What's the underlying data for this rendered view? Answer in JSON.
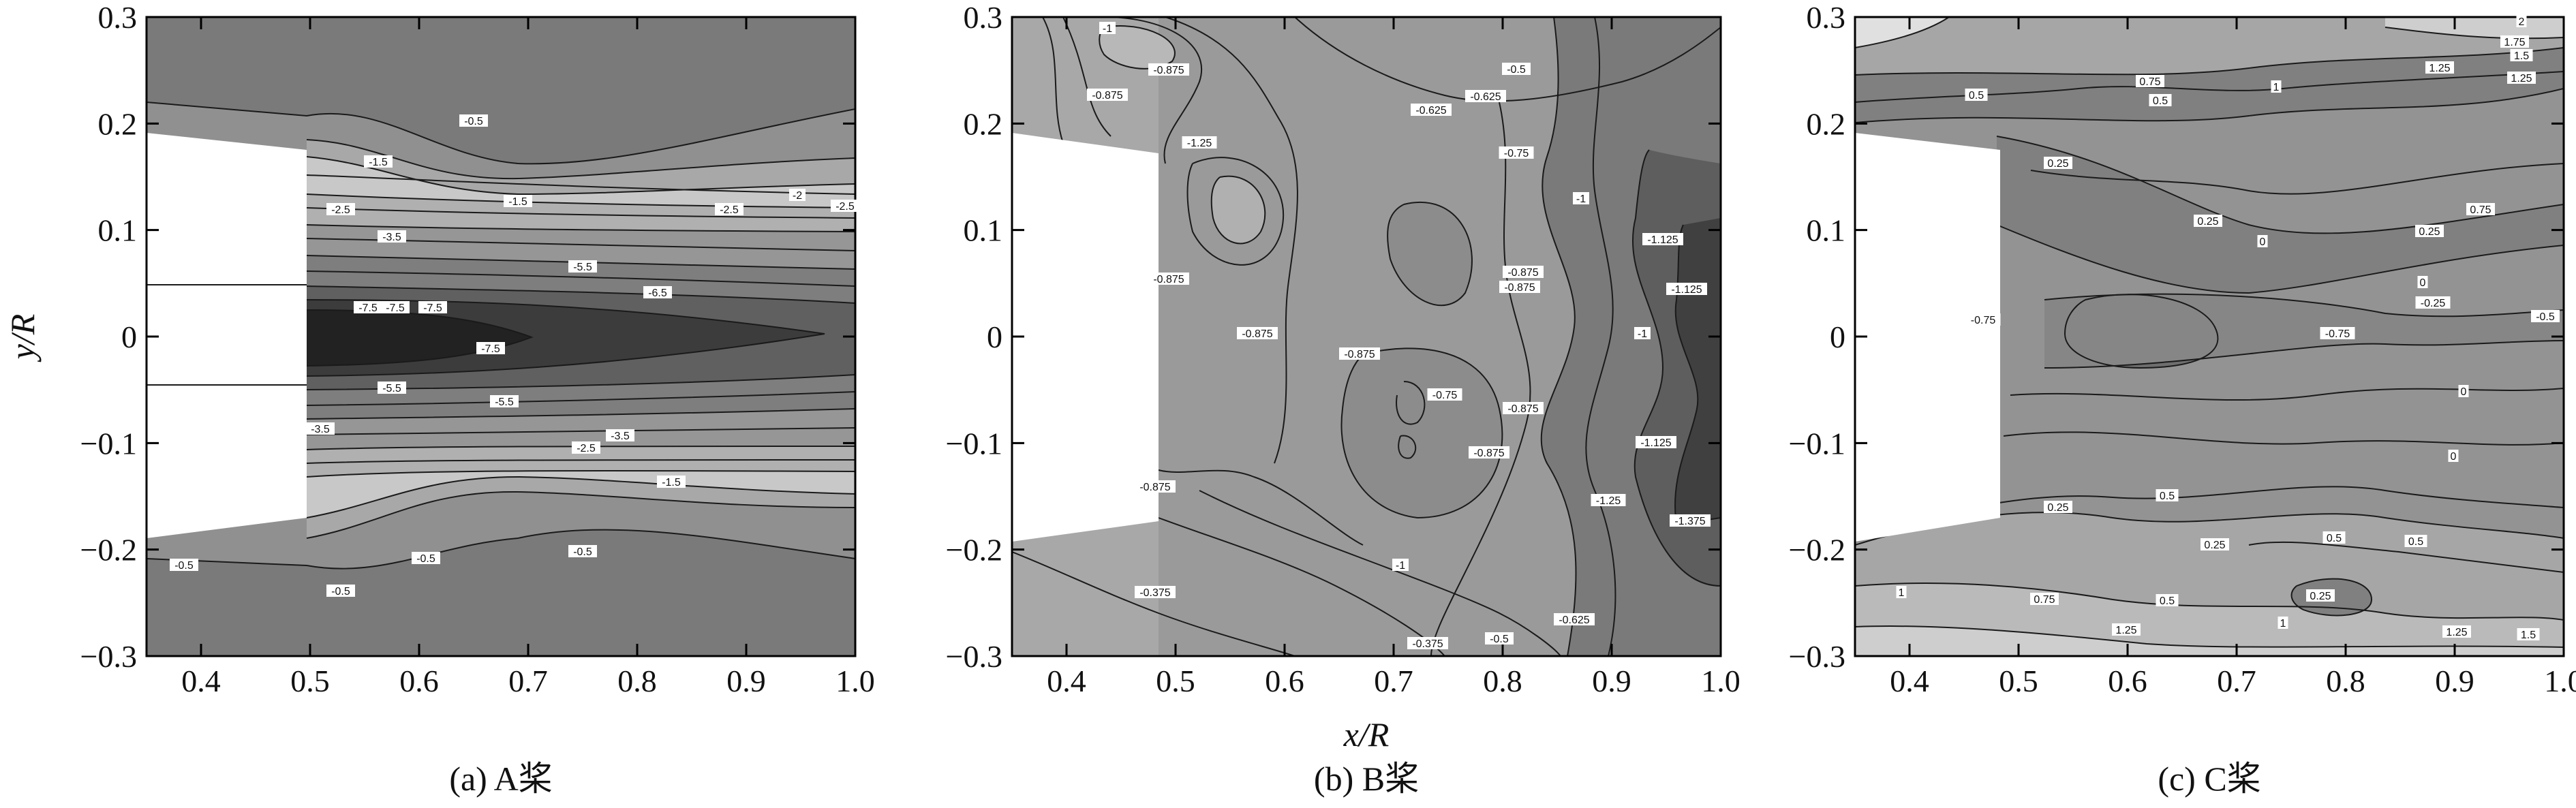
{
  "chart_data": [
    {
      "type": "contour",
      "caption": "(a) A桨",
      "xlabel": "",
      "ylabel": "y/R",
      "xlim": [
        0.35,
        1.0
      ],
      "ylim": [
        -0.3,
        0.3
      ],
      "xticks": [
        "0.4",
        "0.5",
        "0.6",
        "0.7",
        "0.8",
        "0.9",
        "1.0"
      ],
      "yticks": [
        "−0.3",
        "−0.2",
        "−0.1",
        "0",
        "0.1",
        "0.2",
        "0.3"
      ],
      "contour_labels": [
        "-0.5",
        "-1.5",
        "-1.5",
        "-2",
        "-2.5",
        "-2.5",
        "-2.5",
        "-3.5",
        "-5.5",
        "-6.5",
        "-7.5",
        "-7.5",
        "-7.5",
        "-7.5",
        "-5.5",
        "-5.5",
        "-3.5",
        "-3.5",
        "-2.5",
        "-1.5",
        "-0.5",
        "-0.5",
        "-0.5",
        "-0.5"
      ],
      "fill_colors": [
        "#7a7a7a",
        "#909090",
        "#a8a8a8",
        "#c8c8c8",
        "#b0b0b0",
        "#969696",
        "#7e7e7e",
        "#606060",
        "#3c3c3c",
        "#222222"
      ]
    },
    {
      "type": "contour",
      "caption": "(b) B桨",
      "xlabel": "x/R",
      "ylabel": "",
      "xlim": [
        0.35,
        1.0
      ],
      "ylim": [
        -0.3,
        0.3
      ],
      "xticks": [
        "0.4",
        "0.5",
        "0.6",
        "0.7",
        "0.8",
        "0.9",
        "1.0"
      ],
      "yticks": [
        "−0.3",
        "−0.2",
        "−0.1",
        "0",
        "0.1",
        "0.2",
        "0.3"
      ],
      "contour_labels": [
        "-1",
        "-0.875",
        "-0.875",
        "-0.5",
        "-0.625",
        "-0.625",
        "-0.75",
        "-1",
        "-1.125",
        "-0.875",
        "-0.875",
        "-1.125",
        "-0.875",
        "-0.875",
        "-0.875",
        "-0.75",
        "-0.875",
        "-1",
        "-0.875",
        "-1.125",
        "-1.25",
        "-1.375",
        "-1",
        "-0.875",
        "-0.375",
        "-0.375",
        "-0.5",
        "-0.625",
        "-1.25"
      ],
      "fill_colors": [
        "#a8a8a8",
        "#9a9a9a",
        "#8c8c8c",
        "#7a7a7a",
        "#5e5e5e",
        "#404040"
      ]
    },
    {
      "type": "contour",
      "caption": "(c) C桨",
      "xlabel": "",
      "ylabel": "",
      "xlim": [
        0.35,
        1.0
      ],
      "ylim": [
        -0.3,
        0.3
      ],
      "xticks": [
        "0.4",
        "0.5",
        "0.6",
        "0.7",
        "0.8",
        "0.9",
        "1.0"
      ],
      "yticks": [
        "−0.3",
        "−0.2",
        "−0.1",
        "0",
        "0.1",
        "0.2",
        "0.3"
      ],
      "contour_labels": [
        "2",
        "1.75",
        "1.5",
        "1.25",
        "1.25",
        "1",
        "0.75",
        "0.5",
        "0.5",
        "0.25",
        "0.25",
        "0.25",
        "0.75",
        "0",
        "0",
        "-0.25",
        "-0.5",
        "-0.75",
        "-0.75",
        "0",
        "0",
        "0.25",
        "0.5",
        "0.25",
        "0.5",
        "0.75",
        "1",
        "1.25",
        "1.25",
        "1.5",
        "0.25",
        "0.5",
        "0.5",
        "1"
      ],
      "fill_colors": [
        "#6e6e6e",
        "#808080",
        "#939393",
        "#a6a6a6",
        "#bababa",
        "#cecece",
        "#e0e0e0"
      ]
    }
  ]
}
